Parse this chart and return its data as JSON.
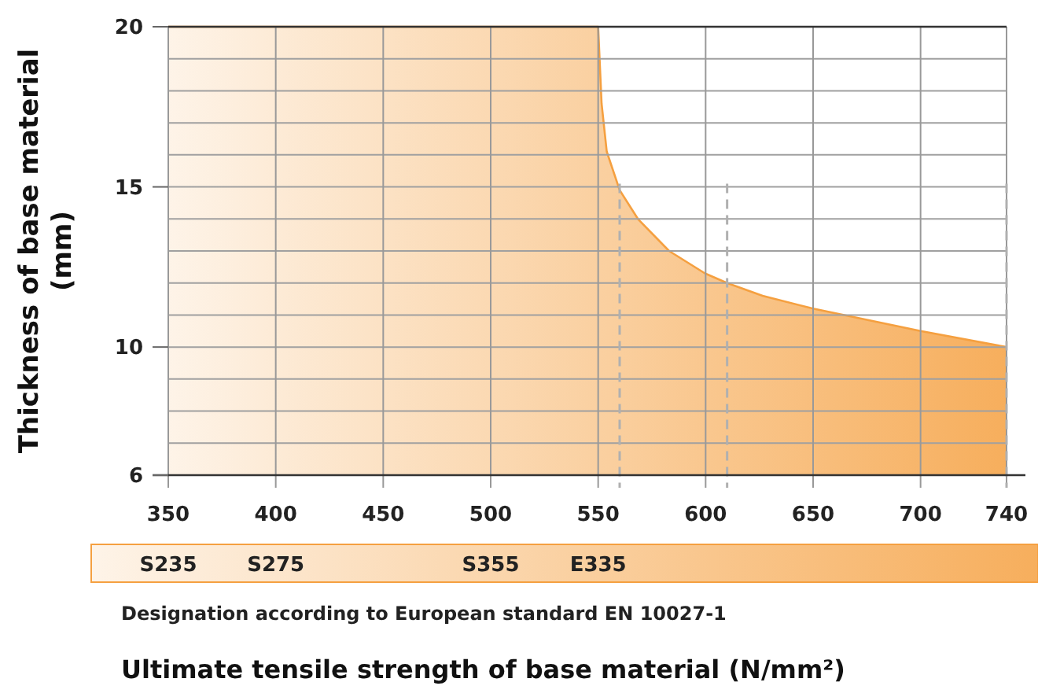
{
  "chart_data": {
    "type": "area",
    "ylabel": "Thickness of base material (mm)",
    "series": [
      {
        "color": "#f5a040",
        "x": [
          350,
          550,
          551.6,
          554,
          560,
          568.5,
          583,
          599.7,
          610,
          626.5,
          650,
          700,
          740
        ],
        "values": [
          20,
          20,
          17.6,
          16.1,
          14.9,
          14,
          13,
          12.3,
          12,
          11.6,
          11.2,
          10.5,
          10
        ]
      }
    ],
    "xlim": [
      350,
      740
    ],
    "xticks": [
      350,
      400,
      450,
      500,
      550,
      600,
      650,
      700,
      740
    ],
    "ylim": [
      6,
      20
    ],
    "yticks": [
      6,
      {
        "value": 7,
        "label": null
      },
      {
        "value": 8,
        "label": null
      },
      {
        "value": 9,
        "label": null
      },
      10,
      {
        "value": 11,
        "label": null
      },
      {
        "value": 12,
        "label": null
      },
      {
        "value": 13,
        "label": null
      },
      {
        "value": 14,
        "label": null
      },
      15,
      {
        "value": 16,
        "label": null
      },
      {
        "value": 17,
        "label": null
      },
      {
        "value": 18,
        "label": null
      },
      {
        "value": 19,
        "label": null
      },
      20
    ],
    "grid": true,
    "ref_lines": [
      {
        "axis": "x",
        "value": 560,
        "color": "#b0b0b0",
        "line_style": "dashed"
      },
      {
        "axis": "x",
        "value": 610,
        "color": "#b0b0b0",
        "line_style": "dashed"
      },
      {
        "axis": "x",
        "value": 740,
        "color": "#b0b0b0",
        "line_style": "dashed"
      }
    ],
    "annotations": [
      "S235",
      "S275",
      "S355",
      "E335",
      "Designation according to European standard EN 10027-1",
      "Ultimate tensile strength of base material (N/mm²)"
    ]
  }
}
